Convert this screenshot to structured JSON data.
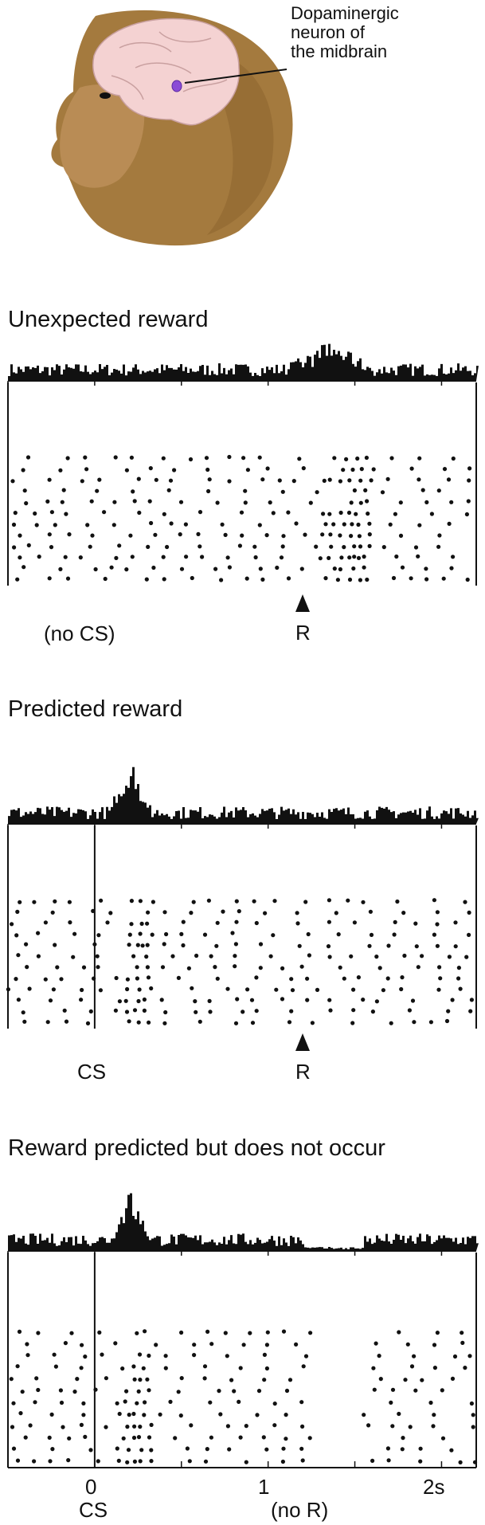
{
  "figure": {
    "annotation_lines": [
      "Dopaminergic",
      "neuron of",
      "the midbrain"
    ],
    "icons": {
      "monkey": "monkey-head-icon",
      "brain": "brain-icon",
      "neuron": "neuron-icon"
    },
    "colors": {
      "ink": "#111111",
      "fur": "#a07a3c",
      "brain": "#f2cfcf",
      "neuron": "#8a4bd6"
    }
  },
  "panels": [
    {
      "title": "Unexpected reward",
      "event_labels": [
        {
          "text": "(no CS)",
          "time": -0.3
        },
        {
          "text": "R",
          "time": 1.2,
          "arrow": true
        }
      ],
      "cs_time": null,
      "reward_time": 1.2,
      "reward_delivered": true
    },
    {
      "title": "Predicted reward",
      "event_labels": [
        {
          "text": "CS",
          "time": 0.0
        },
        {
          "text": "R",
          "time": 1.2,
          "arrow": true
        }
      ],
      "cs_time": 0.0,
      "reward_time": 1.2,
      "reward_delivered": true
    },
    {
      "title": "Reward predicted but does not occur",
      "event_labels": [
        {
          "text": "CS",
          "time": 0.0
        },
        {
          "text": "(no R)",
          "time": 1.2
        }
      ],
      "cs_time": 0.0,
      "reward_time": 1.2,
      "reward_delivered": false
    }
  ],
  "time_axis": {
    "range": [
      -0.5,
      2.2
    ],
    "tick_values": [
      -0.5,
      0,
      0.5,
      1,
      1.5,
      2
    ],
    "tick_labels": [
      {
        "value": 0,
        "text": "0"
      },
      {
        "value": 1,
        "text": "1"
      },
      {
        "value": 2,
        "text": "2s"
      }
    ]
  }
}
